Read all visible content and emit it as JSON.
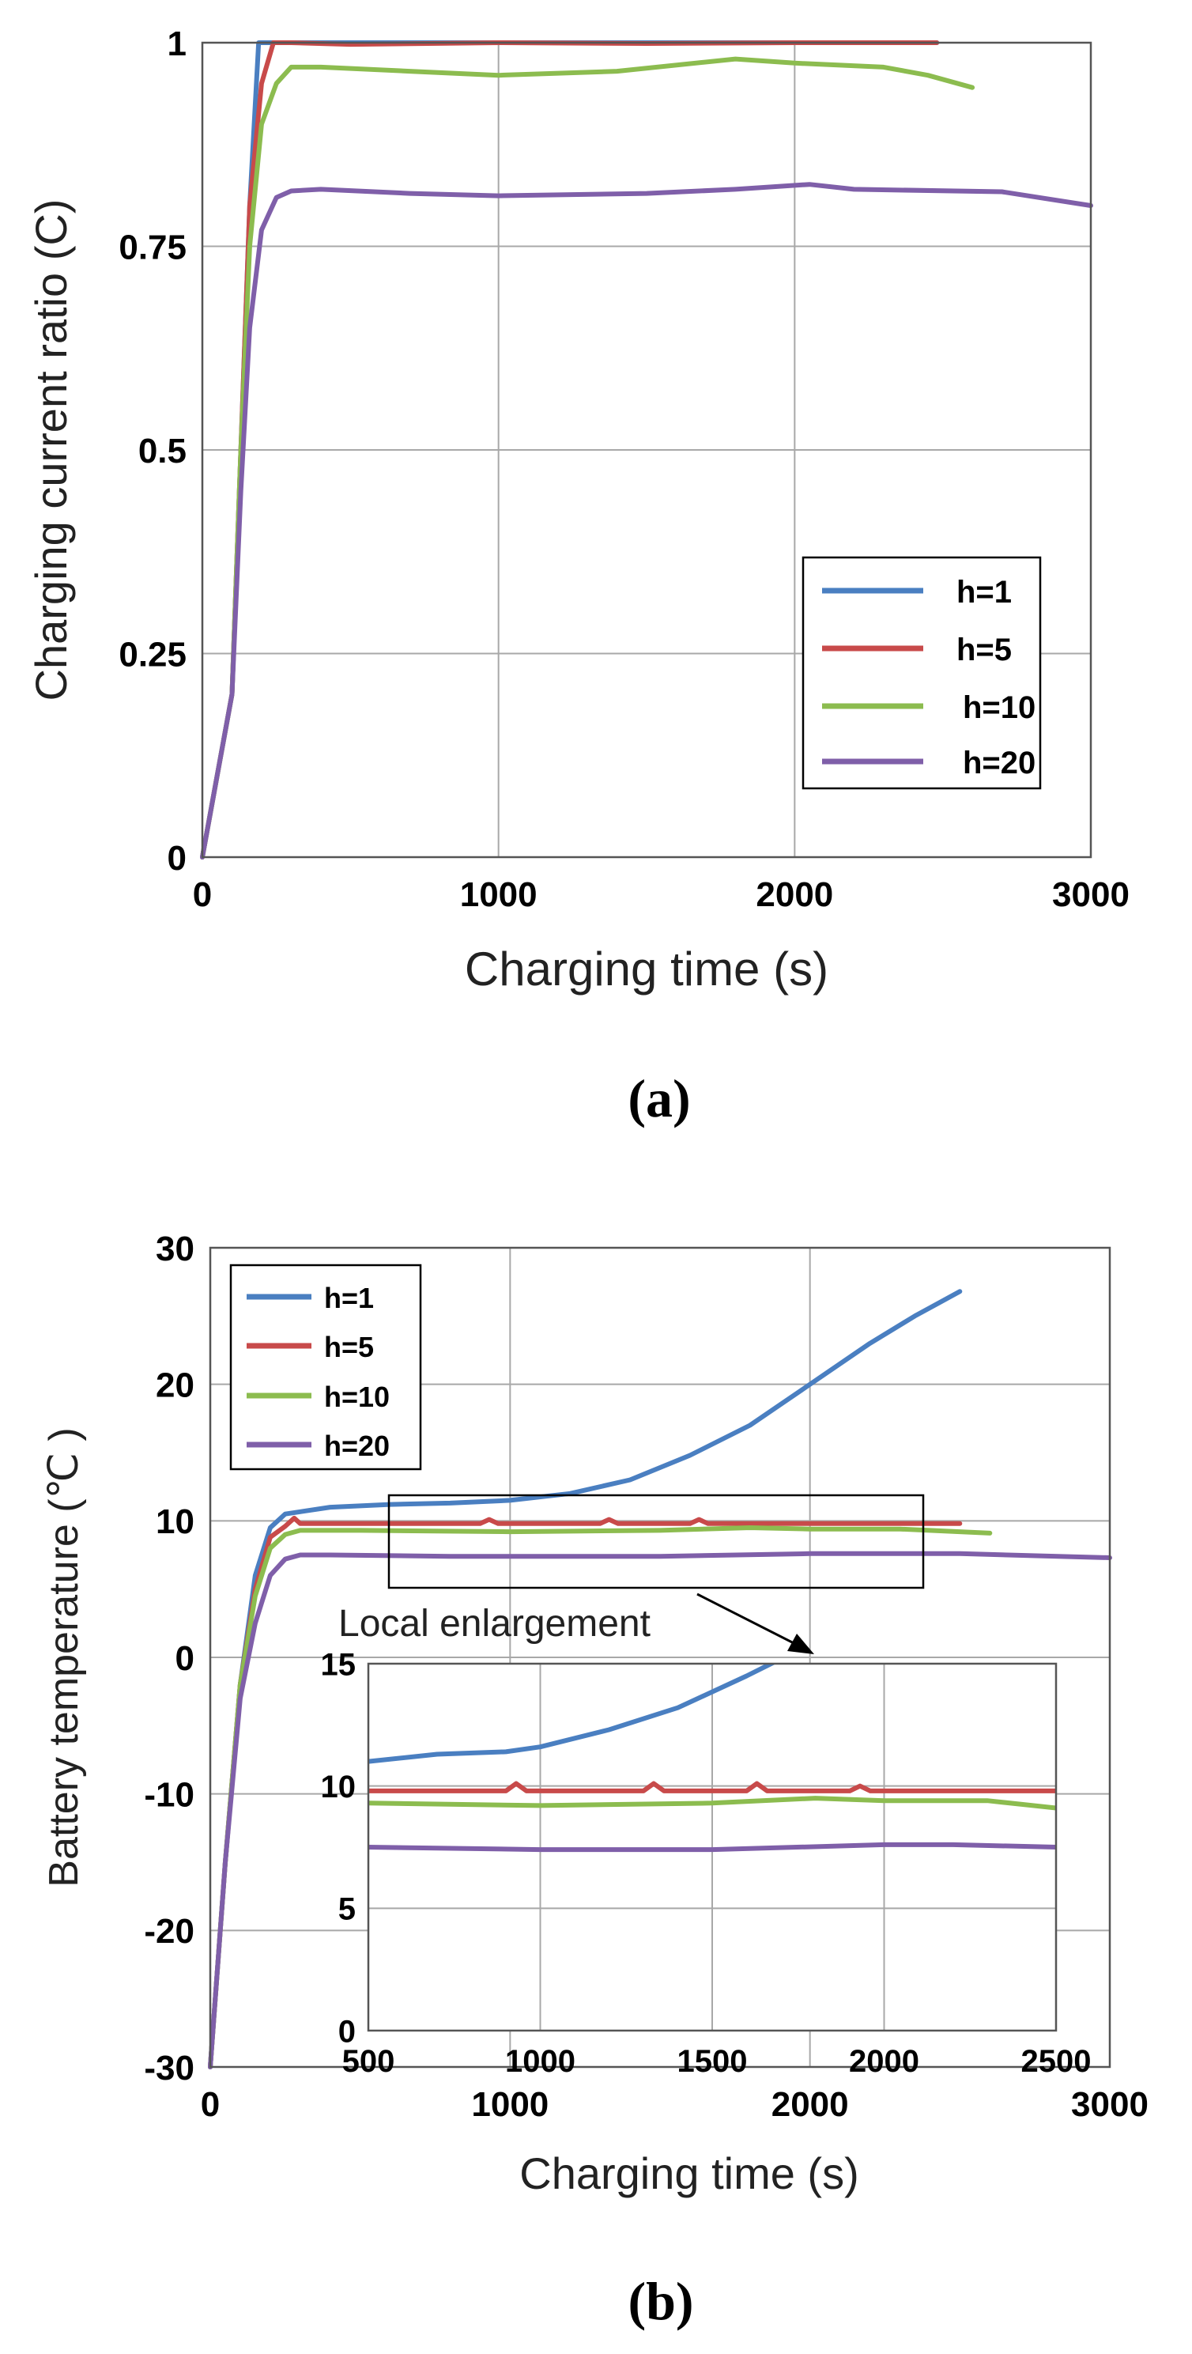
{
  "chart_data": [
    {
      "id": "a",
      "type": "line",
      "caption": "(a)",
      "xlabel": "Charging time (s)",
      "ylabel": "Charging current ratio (C)",
      "xlim": [
        0,
        3000
      ],
      "ylim": [
        0,
        1
      ],
      "xticks": [
        0,
        1000,
        2000,
        3000
      ],
      "yticks": [
        0,
        0.25,
        0.5,
        0.75,
        1
      ],
      "xtick_labels": [
        "0",
        "1000",
        "2000",
        "3000"
      ],
      "ytick_labels": [
        "0",
        "0.25",
        "0.5",
        "0.75",
        "1"
      ],
      "grid": true,
      "legend_position": "lower-right",
      "series": [
        {
          "name": "h=1",
          "color": "#4a7fc1",
          "x": [
            0,
            50,
            100,
            130,
            160,
            190,
            220,
            1000,
            2000,
            2480
          ],
          "y": [
            0,
            0.1,
            0.2,
            0.5,
            0.8,
            1.0,
            1.0,
            1.0,
            1.0,
            1.0
          ]
        },
        {
          "name": "h=5",
          "color": "#c84a4a",
          "x": [
            0,
            50,
            100,
            130,
            160,
            200,
            240,
            300,
            500,
            1000,
            1500,
            2000,
            2480
          ],
          "y": [
            0,
            0.1,
            0.2,
            0.5,
            0.8,
            0.95,
            1.0,
            1.0,
            0.998,
            1.0,
            0.999,
            1.0,
            1.0
          ]
        },
        {
          "name": "h=10",
          "color": "#8cbc4f",
          "x": [
            0,
            50,
            100,
            130,
            160,
            200,
            250,
            300,
            400,
            700,
            1000,
            1400,
            1800,
            2000,
            2300,
            2450,
            2600
          ],
          "y": [
            0,
            0.1,
            0.2,
            0.5,
            0.75,
            0.9,
            0.95,
            0.97,
            0.97,
            0.965,
            0.96,
            0.965,
            0.98,
            0.975,
            0.97,
            0.96,
            0.945
          ]
        },
        {
          "name": "h=20",
          "color": "#7f5fa9",
          "x": [
            0,
            50,
            100,
            130,
            160,
            200,
            250,
            300,
            400,
            700,
            1000,
            1500,
            1800,
            2050,
            2200,
            2700,
            3000
          ],
          "y": [
            0,
            0.1,
            0.2,
            0.45,
            0.65,
            0.77,
            0.81,
            0.818,
            0.82,
            0.815,
            0.812,
            0.815,
            0.82,
            0.826,
            0.82,
            0.817,
            0.8
          ]
        }
      ]
    },
    {
      "id": "b",
      "type": "line",
      "caption": "(b)",
      "xlabel": "Charging time (s)",
      "ylabel": "Battery temperature (℃ )",
      "xlim": [
        0,
        3000
      ],
      "ylim": [
        -30,
        30
      ],
      "xticks": [
        0,
        1000,
        2000,
        3000
      ],
      "yticks": [
        -30,
        -20,
        -10,
        0,
        10,
        20,
        30
      ],
      "xtick_labels": [
        "0",
        "1000",
        "2000",
        "3000"
      ],
      "ytick_labels": [
        "-30",
        "-20",
        "-10",
        "0",
        "10",
        "20",
        "30"
      ],
      "grid": true,
      "legend_position": "top-left",
      "highlight_box": {
        "x": [
          600,
          2400
        ],
        "y": [
          6.5,
          13.5
        ]
      },
      "annotation": "Local enlargement",
      "series": [
        {
          "name": "h=1",
          "color": "#4a7fc1",
          "x": [
            0,
            50,
            100,
            150,
            200,
            250,
            400,
            600,
            800,
            1000,
            1200,
            1400,
            1600,
            1800,
            2000,
            2200,
            2350,
            2500
          ],
          "y": [
            -30,
            -15,
            -2,
            6,
            9.5,
            10.5,
            11,
            11.2,
            11.3,
            11.5,
            12,
            13,
            14.8,
            17,
            20,
            23,
            25,
            26.8
          ]
        },
        {
          "name": "h=5",
          "color": "#c84a4a",
          "x": [
            0,
            50,
            100,
            150,
            200,
            250,
            280,
            300,
            500,
            900,
            930,
            960,
            1300,
            1330,
            1360,
            1600,
            1630,
            1660,
            2000,
            2500
          ],
          "y": [
            -30,
            -15,
            -2,
            5,
            8.8,
            9.6,
            10.2,
            9.8,
            9.8,
            9.8,
            10.1,
            9.8,
            9.8,
            10.1,
            9.8,
            9.8,
            10.1,
            9.8,
            9.8,
            9.8
          ]
        },
        {
          "name": "h=10",
          "color": "#8cbc4f",
          "x": [
            0,
            50,
            100,
            150,
            200,
            250,
            300,
            500,
            1000,
            1500,
            1800,
            2000,
            2300,
            2600
          ],
          "y": [
            -30,
            -15,
            -2,
            4.5,
            8,
            9,
            9.3,
            9.3,
            9.2,
            9.3,
            9.5,
            9.4,
            9.4,
            9.1
          ]
        },
        {
          "name": "h=20",
          "color": "#7f5fa9",
          "x": [
            0,
            50,
            100,
            150,
            200,
            250,
            300,
            400,
            800,
            1500,
            2000,
            2500,
            3000
          ],
          "y": [
            -30,
            -15,
            -3,
            2.5,
            6,
            7.2,
            7.5,
            7.5,
            7.4,
            7.4,
            7.6,
            7.6,
            7.3
          ]
        }
      ]
    },
    {
      "id": "b-inset",
      "type": "line",
      "xlim": [
        500,
        2500
      ],
      "ylim": [
        0,
        15
      ],
      "xticks": [
        500,
        1000,
        1500,
        2000,
        2500
      ],
      "yticks": [
        0,
        5,
        10,
        15
      ],
      "xtick_labels": [
        "500",
        "1000",
        "1500",
        "2000",
        "2500"
      ],
      "ytick_labels": [
        "0",
        "5",
        "10",
        "15"
      ],
      "grid": true,
      "series": [
        {
          "name": "h=1",
          "color": "#4a7fc1",
          "x": [
            500,
            700,
            900,
            1000,
            1200,
            1400,
            1600,
            1700
          ],
          "y": [
            11,
            11.3,
            11.4,
            11.6,
            12.3,
            13.2,
            14.5,
            15.2
          ]
        },
        {
          "name": "h=5",
          "color": "#c84a4a",
          "x": [
            500,
            900,
            930,
            960,
            1300,
            1330,
            1360,
            1600,
            1630,
            1660,
            1900,
            1930,
            1960,
            2200,
            2500
          ],
          "y": [
            9.8,
            9.8,
            10.1,
            9.8,
            9.8,
            10.1,
            9.8,
            9.8,
            10.1,
            9.8,
            9.8,
            10,
            9.8,
            9.8,
            9.8
          ]
        },
        {
          "name": "h=10",
          "color": "#8cbc4f",
          "x": [
            500,
            1000,
            1500,
            1800,
            2000,
            2300,
            2500
          ],
          "y": [
            9.3,
            9.2,
            9.3,
            9.5,
            9.4,
            9.4,
            9.1
          ]
        },
        {
          "name": "h=20",
          "color": "#7f5fa9",
          "x": [
            500,
            1000,
            1500,
            2000,
            2200,
            2500
          ],
          "y": [
            7.5,
            7.4,
            7.4,
            7.6,
            7.6,
            7.5
          ]
        }
      ]
    }
  ]
}
